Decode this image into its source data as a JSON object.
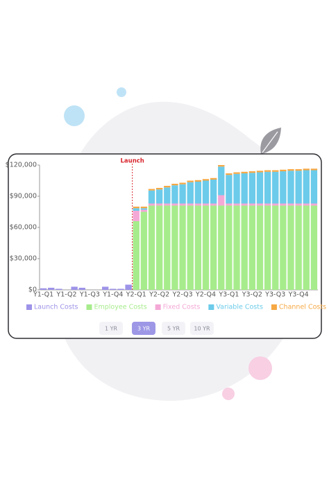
{
  "chart_data": {
    "type": "bar",
    "stacked": true,
    "categories": [
      "Y1-Q1",
      null,
      null,
      "Y1-Q2",
      null,
      null,
      "Y1-Q3",
      null,
      null,
      "Y1-Q4",
      null,
      null,
      "Y2-Q1",
      null,
      null,
      "Y2-Q2",
      null,
      null,
      "Y2-Q3",
      null,
      null,
      "Y2-Q4",
      null,
      null,
      "Y3-Q1",
      null,
      null,
      "Y3-Q2",
      null,
      null,
      "Y3-Q3",
      null,
      null,
      "Y3-Q4",
      null,
      null
    ],
    "series": [
      {
        "name": "Launch Costs",
        "color": "#9d93e8",
        "values": [
          1500,
          2000,
          1000,
          0,
          3000,
          2000,
          0,
          0,
          3000,
          1000,
          1000,
          5000,
          0,
          0,
          0,
          0,
          0,
          0,
          0,
          0,
          0,
          0,
          0,
          0,
          0,
          0,
          0,
          0,
          0,
          0,
          0,
          0,
          0,
          0,
          0,
          0
        ]
      },
      {
        "name": "Employee Costs",
        "color": "#a7ec8c",
        "values": [
          0,
          0,
          0,
          0,
          0,
          0,
          0,
          0,
          0,
          0,
          0,
          0,
          66000,
          75000,
          81000,
          81000,
          81000,
          81000,
          81000,
          81000,
          81000,
          81000,
          81000,
          81000,
          81000,
          81000,
          81000,
          81000,
          81000,
          81000,
          81000,
          81000,
          81000,
          81000,
          81000,
          81000
        ]
      },
      {
        "name": "Fixed Costs",
        "color": "#f4a8d6",
        "values": [
          0,
          0,
          0,
          0,
          0,
          0,
          0,
          0,
          0,
          0,
          0,
          0,
          10000,
          2000,
          2000,
          2000,
          2000,
          2000,
          2000,
          2000,
          2000,
          2000,
          2000,
          10000,
          2000,
          2000,
          2000,
          2000,
          2000,
          2000,
          2000,
          2000,
          2000,
          2000,
          2000,
          2000
        ]
      },
      {
        "name": "Variable Costs",
        "color": "#6ccbea",
        "values": [
          0,
          0,
          0,
          0,
          0,
          0,
          0,
          0,
          0,
          0,
          0,
          0,
          2500,
          1500,
          12500,
          13500,
          15500,
          17500,
          18500,
          20500,
          21000,
          22000,
          23000,
          27500,
          27500,
          28500,
          29000,
          29500,
          30000,
          30500,
          30500,
          31000,
          31500,
          31500,
          32000,
          32000
        ]
      },
      {
        "name": "Channel Costs",
        "color": "#f6a844",
        "values": [
          0,
          0,
          0,
          0,
          0,
          0,
          0,
          0,
          0,
          0,
          0,
          0,
          1500,
          1500,
          1500,
          1500,
          1500,
          1500,
          1500,
          1500,
          1500,
          1500,
          1500,
          1500,
          1500,
          1500,
          1500,
          1500,
          1500,
          1500,
          1500,
          1500,
          1500,
          1500,
          1500,
          1500
        ]
      }
    ],
    "ylim": [
      0,
      120000
    ],
    "yticks": [
      {
        "value": 0,
        "label": "$0"
      },
      {
        "value": 30000,
        "label": "$30,000"
      },
      {
        "value": 60000,
        "label": "$60,000"
      },
      {
        "value": 90000,
        "label": "$90,000"
      },
      {
        "value": 120000,
        "label": "$120,000"
      }
    ],
    "annotations": [
      {
        "text": "Launch",
        "x": "Y2-Q1"
      }
    ],
    "legend": "bottom"
  },
  "controls": {
    "options": [
      "1 YR",
      "3 YR",
      "5 YR",
      "10 YR"
    ],
    "selected": "3 YR"
  }
}
